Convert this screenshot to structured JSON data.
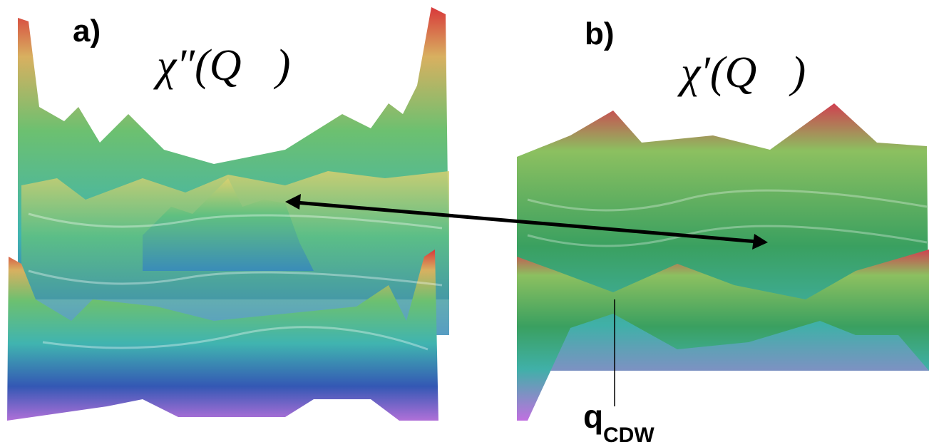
{
  "panels": [
    {
      "label": "a)",
      "formula": "χ″(Q⃗)"
    },
    {
      "label": "b)",
      "formula": "χ′(Q⃗)"
    }
  ],
  "annotation": {
    "symbol": "q",
    "subscript": "CDW"
  }
}
